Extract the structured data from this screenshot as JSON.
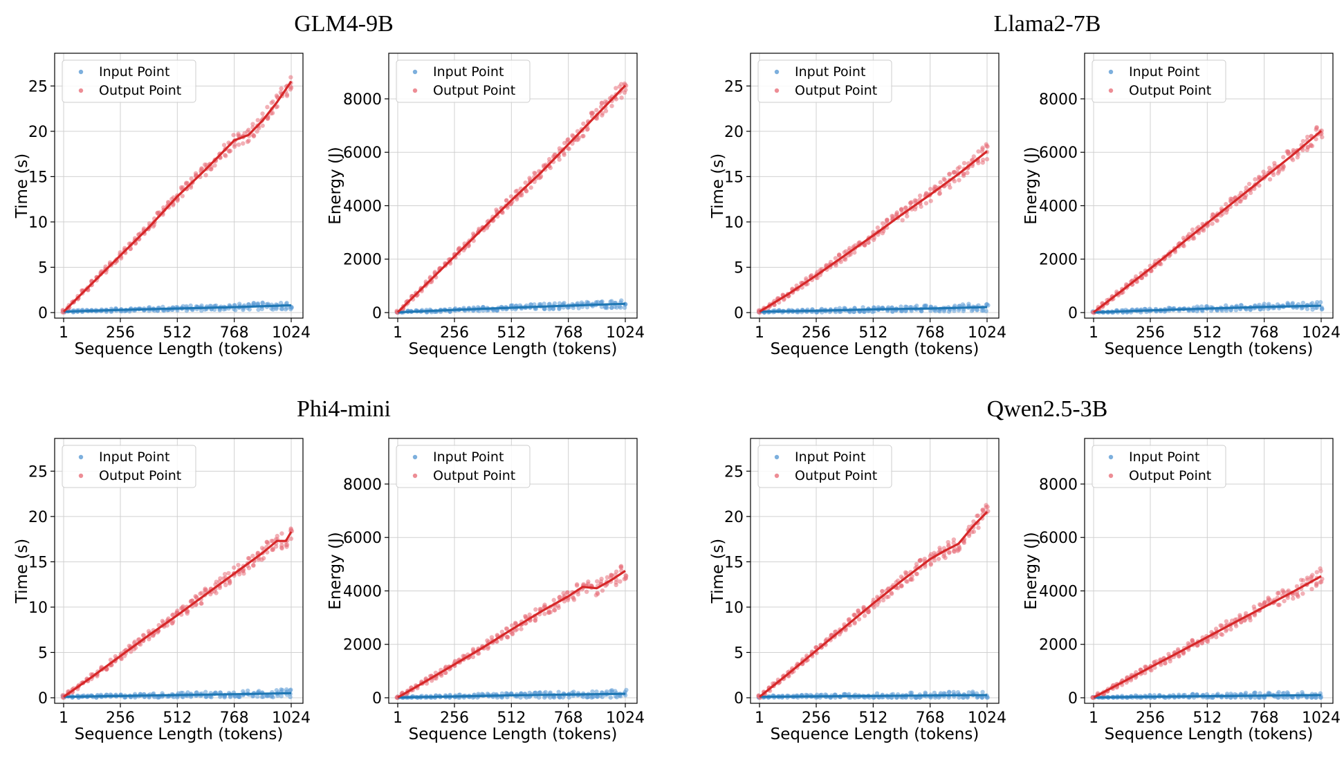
{
  "figure": {
    "groups": [
      {
        "title": "GLM4-9B"
      },
      {
        "title": "Llama2-7B"
      },
      {
        "title": "Phi4-mini"
      },
      {
        "title": "Qwen2.5-3B"
      }
    ]
  },
  "colors": {
    "input": "#1f77b4",
    "input_scatter": "#5b9bd5",
    "output": "#d62728",
    "output_scatter": "#e8707a",
    "grid": "#d0d0d0",
    "frame": "#000000"
  },
  "chart_data": [
    {
      "type": "scatter",
      "model": "GLM4-9B",
      "metric": "time",
      "title": "",
      "xlabel": "Sequence Length (tokens)",
      "ylabel": "Time (s)",
      "xlim": [
        1,
        1024
      ],
      "ylim": [
        0,
        28
      ],
      "xticks": [
        1,
        256,
        512,
        768,
        1024
      ],
      "yticks": [
        0,
        5,
        10,
        15,
        20,
        25
      ],
      "legend": [
        "Input Point",
        "Output Point"
      ],
      "legend_position": "top-left",
      "series": [
        {
          "name": "Input Point",
          "x": [
            1,
            256,
            512,
            768,
            1024
          ],
          "y": [
            0.1,
            0.3,
            0.45,
            0.6,
            0.8
          ]
        },
        {
          "name": "Output Point",
          "x": [
            1,
            128,
            256,
            384,
            512,
            640,
            768,
            832,
            896,
            960,
            1024
          ],
          "y": [
            0.1,
            3.2,
            6.3,
            9.4,
            12.8,
            15.8,
            19.0,
            19.6,
            21.2,
            23.2,
            25.5
          ]
        }
      ]
    },
    {
      "type": "scatter",
      "model": "GLM4-9B",
      "metric": "energy",
      "title": "",
      "xlabel": "Sequence Length (tokens)",
      "ylabel": "Energy (J)",
      "xlim": [
        1,
        1024
      ],
      "ylim": [
        0,
        9500
      ],
      "xticks": [
        1,
        256,
        512,
        768,
        1024
      ],
      "yticks": [
        0,
        2000,
        4000,
        6000,
        8000
      ],
      "legend": [
        "Input Point",
        "Output Point"
      ],
      "legend_position": "top-left",
      "series": [
        {
          "name": "Input Point",
          "x": [
            1,
            256,
            512,
            768,
            1024
          ],
          "y": [
            10,
            100,
            180,
            260,
            330
          ]
        },
        {
          "name": "Output Point",
          "x": [
            1,
            128,
            256,
            384,
            512,
            640,
            768,
            896,
            1024
          ],
          "y": [
            10,
            1050,
            2100,
            3150,
            4200,
            5200,
            6300,
            7400,
            8500
          ]
        }
      ]
    },
    {
      "type": "scatter",
      "model": "Llama2-7B",
      "metric": "time",
      "title": "",
      "xlabel": "Sequence Length (tokens)",
      "ylabel": "Time (s)",
      "xlim": [
        1,
        1024
      ],
      "ylim": [
        0,
        28
      ],
      "xticks": [
        1,
        256,
        512,
        768,
        1024
      ],
      "yticks": [
        0,
        5,
        10,
        15,
        20,
        25
      ],
      "legend": [
        "Input Point",
        "Output Point"
      ],
      "legend_position": "top-left",
      "series": [
        {
          "name": "Input Point",
          "x": [
            1,
            256,
            512,
            768,
            1024
          ],
          "y": [
            0.1,
            0.2,
            0.35,
            0.45,
            0.6
          ]
        },
        {
          "name": "Output Point",
          "x": [
            1,
            128,
            256,
            384,
            512,
            640,
            768,
            896,
            1024
          ],
          "y": [
            0.1,
            2.0,
            4.1,
            6.3,
            8.5,
            10.8,
            13.0,
            15.3,
            17.8
          ]
        }
      ]
    },
    {
      "type": "scatter",
      "model": "Llama2-7B",
      "metric": "energy",
      "title": "",
      "xlabel": "Sequence Length (tokens)",
      "ylabel": "Energy (J)",
      "xlim": [
        1,
        1024
      ],
      "ylim": [
        0,
        9500
      ],
      "xticks": [
        1,
        256,
        512,
        768,
        1024
      ],
      "yticks": [
        0,
        2000,
        4000,
        6000,
        8000
      ],
      "legend": [
        "Input Point",
        "Output Point"
      ],
      "legend_position": "top-left",
      "series": [
        {
          "name": "Input Point",
          "x": [
            1,
            256,
            512,
            768,
            1024
          ],
          "y": [
            10,
            80,
            150,
            210,
            260
          ]
        },
        {
          "name": "Output Point",
          "x": [
            1,
            128,
            256,
            384,
            512,
            640,
            768,
            896,
            1024
          ],
          "y": [
            10,
            820,
            1650,
            2500,
            3350,
            4200,
            5050,
            5900,
            6800
          ]
        }
      ]
    },
    {
      "type": "scatter",
      "model": "Phi4-mini",
      "metric": "time",
      "title": "",
      "xlabel": "Sequence Length (tokens)",
      "ylabel": "Time (s)",
      "xlim": [
        1,
        1024
      ],
      "ylim": [
        0,
        28
      ],
      "xticks": [
        1,
        256,
        512,
        768,
        1024
      ],
      "yticks": [
        0,
        5,
        10,
        15,
        20,
        25
      ],
      "legend": [
        "Input Point",
        "Output Point"
      ],
      "legend_position": "top-left",
      "series": [
        {
          "name": "Input Point",
          "x": [
            1,
            256,
            512,
            768,
            1024
          ],
          "y": [
            0.1,
            0.2,
            0.3,
            0.4,
            0.5
          ]
        },
        {
          "name": "Output Point",
          "x": [
            1,
            128,
            256,
            384,
            512,
            640,
            768,
            896,
            960,
            1000,
            1024
          ],
          "y": [
            0.1,
            2.3,
            4.6,
            6.9,
            9.1,
            11.4,
            13.7,
            16.0,
            17.3,
            17.3,
            18.3
          ]
        }
      ]
    },
    {
      "type": "scatter",
      "model": "Phi4-mini",
      "metric": "energy",
      "title": "",
      "xlabel": "Sequence Length (tokens)",
      "ylabel": "Energy (J)",
      "xlim": [
        1,
        1024
      ],
      "ylim": [
        0,
        9500
      ],
      "xticks": [
        1,
        256,
        512,
        768,
        1024
      ],
      "yticks": [
        0,
        2000,
        4000,
        6000,
        8000
      ],
      "legend": [
        "Input Point",
        "Output Point"
      ],
      "legend_position": "top-left",
      "series": [
        {
          "name": "Input Point",
          "x": [
            1,
            256,
            512,
            768,
            1024
          ],
          "y": [
            10,
            50,
            90,
            120,
            150
          ]
        },
        {
          "name": "Output Point",
          "x": [
            1,
            128,
            256,
            384,
            512,
            640,
            768,
            832,
            896,
            960,
            1024
          ],
          "y": [
            10,
            620,
            1250,
            1880,
            2550,
            3200,
            3800,
            4150,
            4100,
            4400,
            4750
          ]
        }
      ]
    },
    {
      "type": "scatter",
      "model": "Qwen2.5-3B",
      "metric": "time",
      "title": "",
      "xlabel": "Sequence Length (tokens)",
      "ylabel": "Time (s)",
      "xlim": [
        1,
        1024
      ],
      "ylim": [
        0,
        28
      ],
      "xticks": [
        1,
        256,
        512,
        768,
        1024
      ],
      "yticks": [
        0,
        5,
        10,
        15,
        20,
        25
      ],
      "legend": [
        "Input Point",
        "Output Point"
      ],
      "legend_position": "top-left",
      "series": [
        {
          "name": "Input Point",
          "x": [
            1,
            256,
            512,
            768,
            1024
          ],
          "y": [
            0.1,
            0.15,
            0.2,
            0.25,
            0.3
          ]
        },
        {
          "name": "Output Point",
          "x": [
            1,
            128,
            256,
            384,
            512,
            640,
            768,
            832,
            896,
            960,
            1024
          ],
          "y": [
            0.1,
            2.6,
            5.2,
            7.8,
            10.4,
            12.9,
            15.3,
            16.2,
            17.0,
            18.9,
            20.5
          ]
        }
      ]
    },
    {
      "type": "scatter",
      "model": "Qwen2.5-3B",
      "metric": "energy",
      "title": "",
      "xlabel": "Sequence Length (tokens)",
      "ylabel": "Energy (J)",
      "xlim": [
        1,
        1024
      ],
      "ylim": [
        0,
        9500
      ],
      "xticks": [
        1,
        256,
        512,
        768,
        1024
      ],
      "yticks": [
        0,
        2000,
        4000,
        6000,
        8000
      ],
      "legend": [
        "Input Point",
        "Output Point"
      ],
      "legend_position": "top-left",
      "series": [
        {
          "name": "Input Point",
          "x": [
            1,
            256,
            512,
            768,
            1024
          ],
          "y": [
            10,
            40,
            60,
            80,
            100
          ]
        },
        {
          "name": "Output Point",
          "x": [
            1,
            128,
            256,
            384,
            512,
            640,
            768,
            896,
            1024
          ],
          "y": [
            10,
            570,
            1140,
            1700,
            2270,
            2840,
            3400,
            3960,
            4550
          ]
        }
      ]
    }
  ]
}
